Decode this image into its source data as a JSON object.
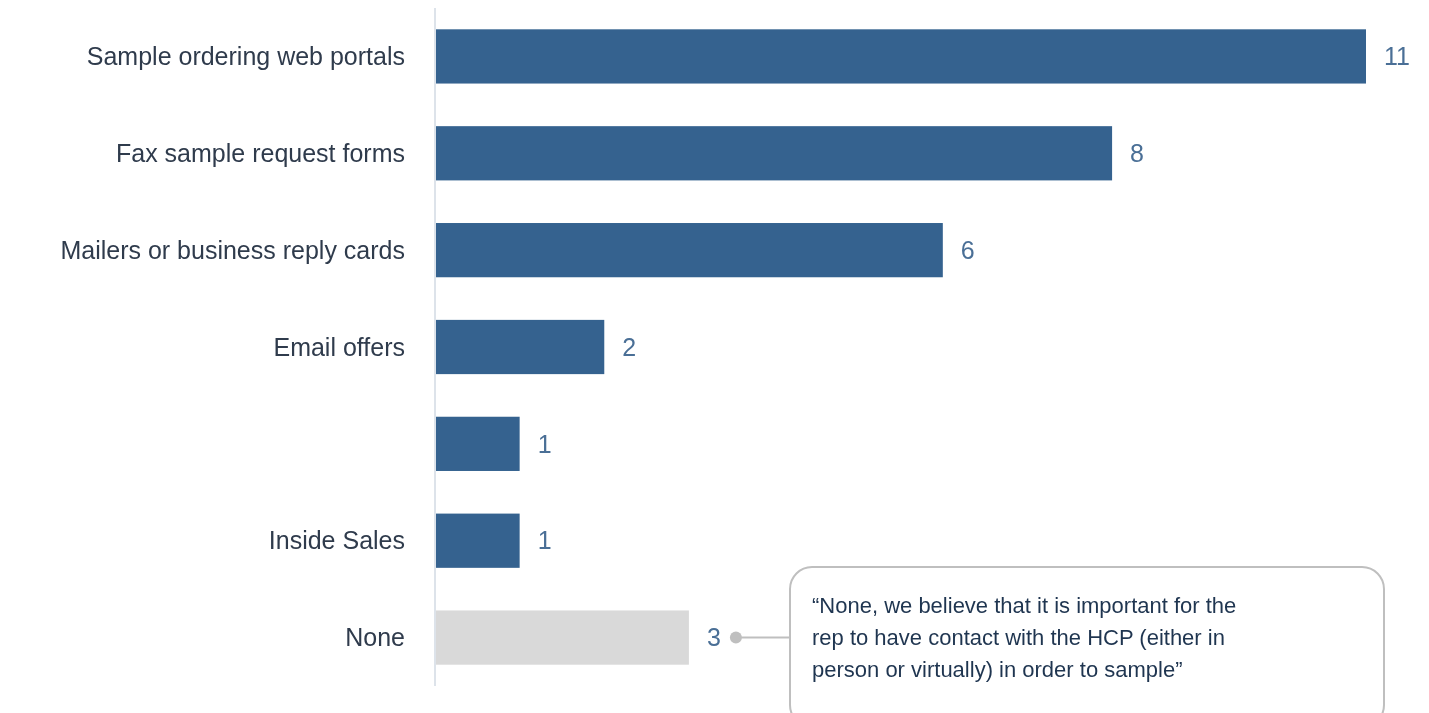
{
  "chart_data": {
    "type": "bar",
    "orientation": "horizontal",
    "categories": [
      "Sample ordering web portals",
      "Fax sample request forms",
      "Mailers or business reply cards",
      "Email offers",
      null,
      "Inside Sales",
      "None"
    ],
    "values": [
      11,
      8,
      6,
      2,
      1,
      1,
      3
    ],
    "colors": [
      "#35628f",
      "#35628f",
      "#35628f",
      "#35628f",
      "#35628f",
      "#35628f",
      "#d9d9d9"
    ],
    "data_labels": true,
    "annotations": [
      "“None, we believe that it is important for the rep to have contact with the HCP (either in person or virtually) in order to sample”"
    ]
  }
}
